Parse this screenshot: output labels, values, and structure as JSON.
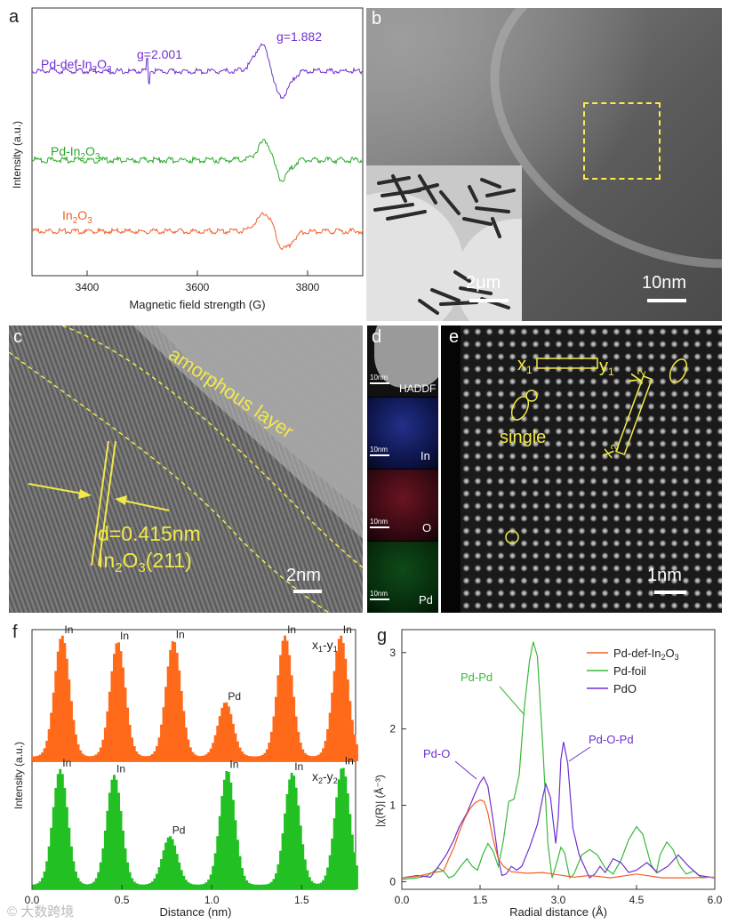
{
  "figure": {
    "panel_labels": {
      "a": "a",
      "b": "b",
      "c": "c",
      "d": "d",
      "e": "e",
      "f": "f",
      "g": "g"
    },
    "watermark": "© 大数跨境"
  },
  "panel_a": {
    "chart_data": {
      "type": "line",
      "xlabel": "Magnetic field strength (G)",
      "ylabel": "Intensity (a.u.)",
      "xlim": [
        3300,
        3900
      ],
      "xticks": [
        "3400",
        "3600",
        "3800"
      ],
      "series": [
        {
          "name": "Pd-def-In2O3",
          "label_main": "Pd-def-In",
          "sub": "2",
          "label_tail": "O",
          "sub2": "3",
          "color": "#7030d0"
        },
        {
          "name": "Pd-In2O3",
          "label_main": "Pd-In",
          "sub": "2",
          "label_tail": "O",
          "sub2": "3",
          "color": "#2aa82a"
        },
        {
          "name": "In2O3",
          "label_main": "In",
          "sub": "2",
          "label_tail": "O",
          "sub2": "3",
          "color": "#f0602a"
        }
      ],
      "annotations": [
        {
          "text": "g=2.001",
          "x": 3510,
          "color": "#7030d0"
        },
        {
          "text": "g=1.882",
          "x": 3730,
          "color": "#7030d0"
        }
      ]
    }
  },
  "panel_b": {
    "scalebar_main": "10nm",
    "scalebar_inset": "2μm"
  },
  "panel_c": {
    "label_amorphous": "amorphous layer",
    "label_d": "d=0.415nm",
    "label_plane_main": "In",
    "label_plane_sub1": "2",
    "label_plane_mid": "O",
    "label_plane_sub2": "3",
    "label_plane_tail": "(211)",
    "scalebar": "2nm"
  },
  "panel_d": {
    "tiles": [
      {
        "scale": "10nm",
        "label": "HADDF",
        "color": "#9a9a9a"
      },
      {
        "scale": "10nm",
        "label": "In",
        "color": "#2040c0"
      },
      {
        "scale": "10nm",
        "label": "O",
        "color": "#c02020"
      },
      {
        "scale": "10nm",
        "label": "Pd",
        "color": "#20c040"
      }
    ]
  },
  "panel_e": {
    "x1": "x",
    "x1_sub": "1",
    "y1": "y",
    "y1_sub": "1",
    "x2": "x",
    "x2_sub": "2",
    "y2": "y",
    "y2_sub": "2",
    "label_single": "single",
    "scalebar": "1nm"
  },
  "panel_f": {
    "chart_data": {
      "type": "bar",
      "xlabel": "Distance (nm)",
      "ylabel": "Intensity (a.u.)",
      "xlim": [
        0.0,
        1.8
      ],
      "xticks": [
        "0.0",
        "0.5",
        "1.0",
        "1.5"
      ],
      "series": [
        {
          "name": "x1-y1",
          "main": "x",
          "sub_a": "1",
          "mid": "-y",
          "sub_b": "1",
          "color": "#ff6a1a",
          "peaks": [
            {
              "label": "In",
              "center": 0.16,
              "height": 1.0
            },
            {
              "label": "In",
              "center": 0.47,
              "height": 0.95
            },
            {
              "label": "In",
              "center": 0.78,
              "height": 0.96
            },
            {
              "label": "Pd",
              "center": 1.07,
              "height": 0.45
            },
            {
              "label": "In",
              "center": 1.4,
              "height": 1.0
            },
            {
              "label": "In",
              "center": 1.71,
              "height": 1.0
            }
          ]
        },
        {
          "name": "x2-y2",
          "main": "x",
          "sub_a": "2",
          "mid": "-y",
          "sub_b": "2",
          "color": "#22c022",
          "peaks": [
            {
              "label": "In",
              "center": 0.15,
              "height": 1.0
            },
            {
              "label": "In",
              "center": 0.45,
              "height": 0.95
            },
            {
              "label": "Pd",
              "center": 0.76,
              "height": 0.42
            },
            {
              "label": "In",
              "center": 1.08,
              "height": 0.99
            },
            {
              "label": "In",
              "center": 1.44,
              "height": 0.97
            },
            {
              "label": "In",
              "center": 1.72,
              "height": 1.02
            }
          ]
        }
      ]
    }
  },
  "panel_g": {
    "chart_data": {
      "type": "line",
      "xlabel": "Radial distance (Å)",
      "ylabel": "|χ(R)| (Å⁻³)",
      "xlim": [
        0.0,
        6.0
      ],
      "ylim": [
        -0.1,
        3.3
      ],
      "xticks": [
        "0.0",
        "1.5",
        "3.0",
        "4.5",
        "6.0"
      ],
      "yticks": [
        "0",
        "1",
        "2",
        "3"
      ],
      "legend": [
        {
          "name": "Pd-def-In2O3",
          "main": "Pd-def-In",
          "sub1": "2",
          "mid": "O",
          "sub2": "3",
          "color": "#f0602a"
        },
        {
          "name": "Pd-foil",
          "main": "Pd-foil",
          "sub1": "",
          "mid": "",
          "sub2": "",
          "color": "#3ab83a"
        },
        {
          "name": "PdO",
          "main": "PdO",
          "sub1": "",
          "mid": "",
          "sub2": "",
          "color": "#7030d0"
        }
      ],
      "series": {
        "pd_def_in2o3": [
          [
            0,
            0.05
          ],
          [
            0.3,
            0.07
          ],
          [
            0.6,
            0.12
          ],
          [
            0.8,
            0.14
          ],
          [
            0.9,
            0.3
          ],
          [
            1.0,
            0.45
          ],
          [
            1.1,
            0.65
          ],
          [
            1.2,
            0.82
          ],
          [
            1.3,
            0.95
          ],
          [
            1.4,
            1.03
          ],
          [
            1.5,
            1.07
          ],
          [
            1.58,
            1.05
          ],
          [
            1.65,
            0.9
          ],
          [
            1.75,
            0.55
          ],
          [
            1.85,
            0.3
          ],
          [
            1.95,
            0.2
          ],
          [
            2.1,
            0.13
          ],
          [
            2.4,
            0.11
          ],
          [
            2.7,
            0.12
          ],
          [
            3.0,
            0.09
          ],
          [
            3.3,
            0.06
          ],
          [
            3.6,
            0.08
          ],
          [
            4.0,
            0.05
          ],
          [
            4.5,
            0.1
          ],
          [
            5.0,
            0.05
          ],
          [
            5.5,
            0.05
          ],
          [
            6.0,
            0.06
          ]
        ],
        "pd_foil": [
          [
            0,
            0.03
          ],
          [
            0.3,
            0.05
          ],
          [
            0.5,
            0.08
          ],
          [
            0.7,
            0.18
          ],
          [
            0.8,
            0.14
          ],
          [
            0.9,
            0.05
          ],
          [
            1.0,
            0.08
          ],
          [
            1.15,
            0.22
          ],
          [
            1.25,
            0.3
          ],
          [
            1.35,
            0.2
          ],
          [
            1.45,
            0.15
          ],
          [
            1.55,
            0.35
          ],
          [
            1.65,
            0.5
          ],
          [
            1.75,
            0.4
          ],
          [
            1.85,
            0.2
          ],
          [
            1.95,
            0.55
          ],
          [
            2.05,
            1.05
          ],
          [
            2.15,
            1.08
          ],
          [
            2.25,
            1.4
          ],
          [
            2.35,
            2.3
          ],
          [
            2.45,
            2.9
          ],
          [
            2.52,
            3.14
          ],
          [
            2.6,
            2.95
          ],
          [
            2.7,
            1.8
          ],
          [
            2.8,
            0.5
          ],
          [
            2.88,
            0.05
          ],
          [
            2.95,
            0.2
          ],
          [
            3.05,
            0.45
          ],
          [
            3.12,
            0.38
          ],
          [
            3.22,
            0.05
          ],
          [
            3.3,
            0.1
          ],
          [
            3.45,
            0.35
          ],
          [
            3.6,
            0.42
          ],
          [
            3.75,
            0.35
          ],
          [
            3.9,
            0.18
          ],
          [
            4.05,
            0.1
          ],
          [
            4.2,
            0.28
          ],
          [
            4.35,
            0.55
          ],
          [
            4.5,
            0.72
          ],
          [
            4.62,
            0.62
          ],
          [
            4.78,
            0.22
          ],
          [
            4.88,
            0.12
          ],
          [
            4.95,
            0.35
          ],
          [
            5.08,
            0.52
          ],
          [
            5.2,
            0.42
          ],
          [
            5.32,
            0.22
          ],
          [
            5.45,
            0.1
          ],
          [
            5.6,
            0.14
          ],
          [
            5.75,
            0.05
          ],
          [
            5.9,
            0.06
          ],
          [
            6.0,
            0.05
          ]
        ],
        "pdo": [
          [
            0,
            0.05
          ],
          [
            0.3,
            0.08
          ],
          [
            0.55,
            0.06
          ],
          [
            0.7,
            0.2
          ],
          [
            0.85,
            0.35
          ],
          [
            1.0,
            0.55
          ],
          [
            1.1,
            0.72
          ],
          [
            1.25,
            0.9
          ],
          [
            1.4,
            1.15
          ],
          [
            1.5,
            1.3
          ],
          [
            1.57,
            1.37
          ],
          [
            1.65,
            1.25
          ],
          [
            1.75,
            0.8
          ],
          [
            1.85,
            0.3
          ],
          [
            1.92,
            0.08
          ],
          [
            2.0,
            0.1
          ],
          [
            2.1,
            0.2
          ],
          [
            2.2,
            0.15
          ],
          [
            2.3,
            0.2
          ],
          [
            2.45,
            0.45
          ],
          [
            2.6,
            0.75
          ],
          [
            2.7,
            1.1
          ],
          [
            2.76,
            1.28
          ],
          [
            2.85,
            1.1
          ],
          [
            2.95,
            0.5
          ],
          [
            3.0,
            0.85
          ],
          [
            3.05,
            1.6
          ],
          [
            3.1,
            1.83
          ],
          [
            3.18,
            1.55
          ],
          [
            3.28,
            0.7
          ],
          [
            3.4,
            0.35
          ],
          [
            3.5,
            0.2
          ],
          [
            3.6,
            0.05
          ],
          [
            3.7,
            0.1
          ],
          [
            3.8,
            0.2
          ],
          [
            3.9,
            0.12
          ],
          [
            4.05,
            0.3
          ],
          [
            4.2,
            0.25
          ],
          [
            4.35,
            0.12
          ],
          [
            4.5,
            0.15
          ],
          [
            4.7,
            0.25
          ],
          [
            4.9,
            0.12
          ],
          [
            5.1,
            0.2
          ],
          [
            5.3,
            0.35
          ],
          [
            5.5,
            0.2
          ],
          [
            5.7,
            0.08
          ],
          [
            6.0,
            0.05
          ]
        ]
      },
      "annotations": [
        {
          "text": "Pd-Pd",
          "color": "#3ab83a"
        },
        {
          "text": "Pd-O",
          "color": "#7030d0"
        },
        {
          "text": "Pd-O-Pd",
          "color": "#7030d0"
        }
      ]
    }
  }
}
